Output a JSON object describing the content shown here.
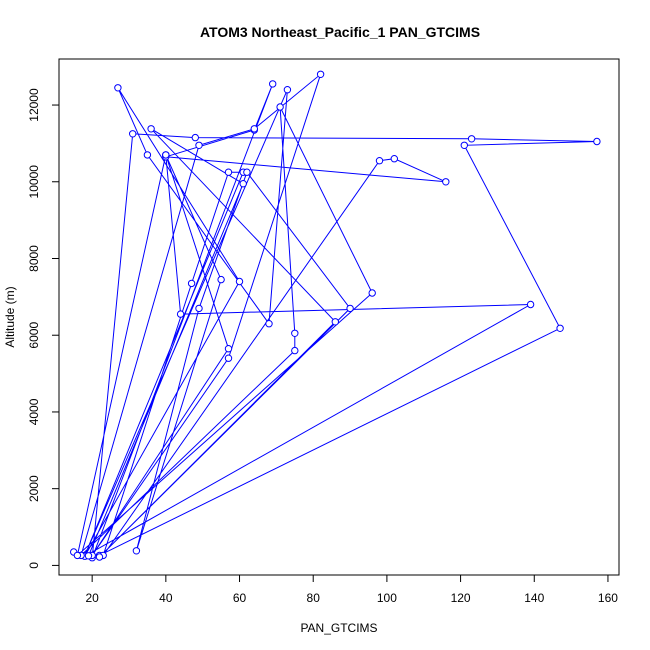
{
  "chart_data": {
    "type": "line",
    "title": "ATOM3 Northeast_Pacific_1 PAN_GTCIMS",
    "xlabel": "PAN_GTCIMS",
    "ylabel": "Altitude (m)",
    "xlim": [
      11,
      163
    ],
    "ylim": [
      -250,
      13200
    ],
    "xticks": [
      20,
      40,
      60,
      80,
      100,
      120,
      140,
      160
    ],
    "yticks": [
      0,
      2000,
      4000,
      6000,
      8000,
      10000,
      12000
    ],
    "grid": false,
    "legend": "none",
    "marker": "open-circle",
    "color": "#0000ff",
    "series": [
      {
        "x": [
          15,
          22,
          147,
          121,
          157,
          123,
          48,
          31,
          20,
          69,
          64,
          40,
          116,
          102,
          98,
          23,
          47,
          57,
          61,
          18,
          73,
          68,
          35,
          27,
          60,
          18,
          139,
          44,
          40,
          57,
          20,
          57,
          82,
          64,
          49,
          17,
          75,
          75,
          71,
          96,
          16,
          40,
          55,
          32,
          49,
          62,
          90,
          22,
          86,
          36,
          61,
          19
        ],
        "y": [
          350,
          260,
          6180,
          10950,
          11050,
          11120,
          11150,
          11250,
          200,
          12550,
          11350,
          10650,
          10000,
          10600,
          10550,
          260,
          7350,
          10250,
          10250,
          260,
          12400,
          6300,
          10700,
          12450,
          7400,
          240,
          6800,
          6550,
          10700,
          5650,
          260,
          5400,
          12800,
          11380,
          10950,
          260,
          5600,
          6050,
          11950,
          7100,
          260,
          10700,
          7450,
          380,
          6700,
          10250,
          6700,
          220,
          6350,
          11380,
          9950,
          250
        ]
      }
    ]
  }
}
